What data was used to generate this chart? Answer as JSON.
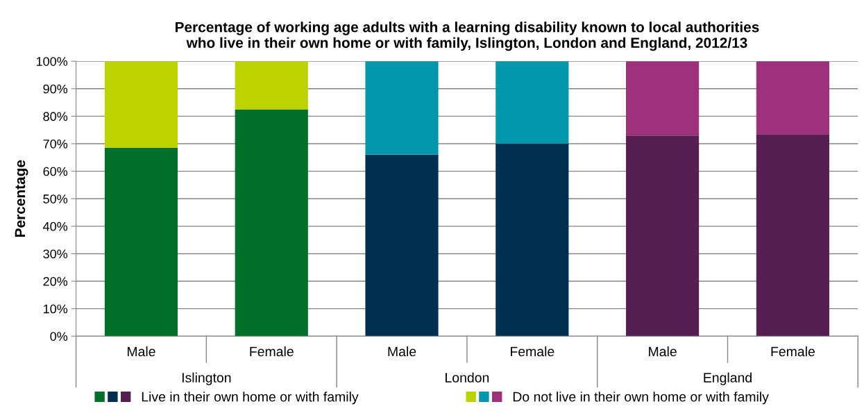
{
  "chart_data": {
    "type": "bar",
    "stacked": true,
    "title": "Percentage of working age adults with a learning disability known to local authorities\nwho live in their own home or with family, Islington, London and England, 2012/13",
    "ylabel": "Percentage",
    "categories": [
      "Male",
      "Female",
      "Male",
      "Female",
      "Male",
      "Female"
    ],
    "annotations": [
      "Islington",
      "London",
      "England"
    ],
    "series": [
      {
        "name": "Live in their own home or with family",
        "colors": [
          "#006f2a",
          "#006f2a",
          "#002e50",
          "#002e50",
          "#571e52",
          "#571e52"
        ],
        "values": [
          68.5,
          82.5,
          66,
          70,
          73,
          73.5
        ]
      },
      {
        "name": "Do not live in their own home or with family",
        "colors": [
          "#bcd300",
          "#bcd300",
          "#0097ad",
          "#0097ad",
          "#9c307a",
          "#9c307a"
        ],
        "values": [
          31.5,
          17.5,
          34,
          30,
          27,
          26.5
        ]
      }
    ],
    "ylim": [
      0,
      100
    ],
    "yticks": [
      {
        "value": 0,
        "label": "0%"
      },
      {
        "value": 10,
        "label": "10%"
      },
      {
        "value": 20,
        "label": "20%"
      },
      {
        "value": 30,
        "label": "30%"
      },
      {
        "value": 40,
        "label": "40%"
      },
      {
        "value": 50,
        "label": "50%"
      },
      {
        "value": 60,
        "label": "60%"
      },
      {
        "value": 70,
        "label": "70%"
      },
      {
        "value": 80,
        "label": "80%"
      },
      {
        "value": 90,
        "label": "90%"
      },
      {
        "value": 100,
        "label": "100%"
      }
    ],
    "grid": "y",
    "legend": "bottom"
  }
}
